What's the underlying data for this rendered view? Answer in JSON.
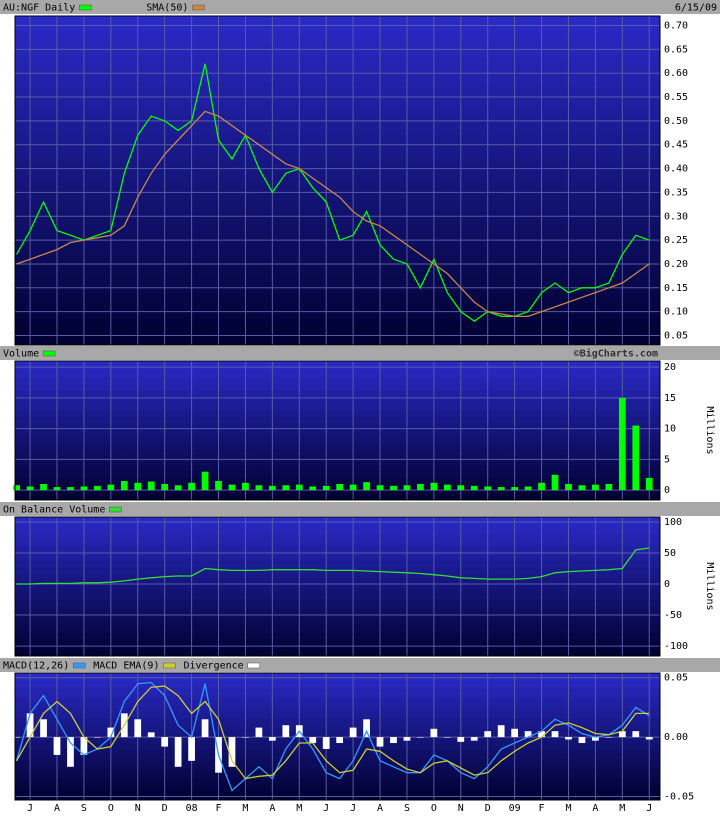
{
  "chart_data": [
    {
      "type": "line",
      "date": "6/15/09",
      "x": [
        -0.5,
        0,
        0.5,
        1,
        1.5,
        2,
        2.5,
        3,
        3.5,
        4,
        4.5,
        5,
        5.5,
        6,
        6.5,
        7,
        7.5,
        8,
        8.5,
        9,
        9.5,
        10,
        10.5,
        11,
        11.5,
        12,
        12.5,
        13,
        13.5,
        14,
        14.5,
        15,
        15.5,
        16,
        16.5,
        17,
        17.5,
        18,
        18.5,
        19,
        19.5,
        20,
        20.5,
        21,
        21.5,
        22,
        22.5,
        23
      ],
      "xlim": [
        -0.56,
        23.4
      ],
      "ylim": [
        0.03,
        0.72
      ],
      "yticks": [
        0.05,
        {
          "value": 0.1,
          "label": "0.10"
        },
        0.15,
        {
          "value": 0.2,
          "label": "0.20"
        },
        0.25,
        {
          "value": 0.3,
          "label": "0.30"
        },
        0.35,
        {
          "value": 0.4,
          "label": "0.40"
        },
        0.45,
        {
          "value": 0.5,
          "label": "0.50"
        },
        0.55,
        {
          "value": 0.6,
          "label": "0.60"
        },
        0.65,
        {
          "value": 0.7,
          "label": "0.70"
        }
      ],
      "grid": true,
      "series": [
        {
          "name": "AU:NGF Daily",
          "color": "#00ff00",
          "values": [
            0.22,
            0.27,
            0.33,
            0.27,
            0.26,
            0.25,
            0.26,
            0.27,
            0.39,
            0.47,
            0.51,
            0.5,
            0.48,
            0.5,
            0.62,
            0.46,
            0.42,
            0.47,
            0.4,
            0.35,
            0.39,
            0.4,
            0.36,
            0.33,
            0.25,
            0.26,
            0.31,
            0.24,
            0.21,
            0.2,
            0.15,
            0.21,
            0.14,
            0.1,
            0.08,
            0.1,
            0.09,
            0.09,
            0.1,
            0.14,
            0.16,
            0.14,
            0.15,
            0.15,
            0.16,
            0.22,
            0.26,
            0.25
          ]
        },
        {
          "name": "SMA(50)",
          "color": "#c8864a",
          "values": [
            0.2,
            0.21,
            0.22,
            0.23,
            0.245,
            0.25,
            0.255,
            0.26,
            0.28,
            0.34,
            0.39,
            0.43,
            0.46,
            0.49,
            0.52,
            0.51,
            0.49,
            0.47,
            0.45,
            0.43,
            0.41,
            0.4,
            0.38,
            0.36,
            0.34,
            0.31,
            0.29,
            0.28,
            0.26,
            0.24,
            0.22,
            0.2,
            0.18,
            0.15,
            0.12,
            0.1,
            0.095,
            0.09,
            0.09,
            0.1,
            0.11,
            0.12,
            0.13,
            0.14,
            0.15,
            0.16,
            0.18,
            0.2
          ]
        }
      ]
    },
    {
      "type": "bar",
      "credit": "©BigCharts.com",
      "y_label": "Millions",
      "x": [
        -0.5,
        0,
        0.5,
        1,
        1.5,
        2,
        2.5,
        3,
        3.5,
        4,
        4.5,
        5,
        5.5,
        6,
        6.5,
        7,
        7.5,
        8,
        8.5,
        9,
        9.5,
        10,
        10.5,
        11,
        11.5,
        12,
        12.5,
        13,
        13.5,
        14,
        14.5,
        15,
        15.5,
        16,
        16.5,
        17,
        17.5,
        18,
        18.5,
        19,
        19.5,
        20,
        20.5,
        21,
        21.5,
        22,
        22.5,
        23
      ],
      "xlim": [
        -0.56,
        23.4
      ],
      "ylim": [
        -1.6,
        21
      ],
      "yticks": [
        0,
        5,
        10,
        15,
        20
      ],
      "grid": true,
      "series": [
        {
          "name": "Volume",
          "color": "#00ff00",
          "values": [
            0.8,
            0.6,
            1.0,
            0.5,
            0.5,
            0.6,
            0.7,
            0.9,
            1.5,
            1.2,
            1.4,
            1.0,
            0.8,
            1.2,
            3.0,
            1.5,
            0.9,
            1.2,
            0.8,
            0.7,
            0.8,
            0.9,
            0.6,
            0.7,
            1.0,
            0.9,
            1.3,
            0.8,
            0.7,
            0.8,
            1.0,
            1.2,
            0.9,
            0.8,
            0.7,
            0.6,
            0.5,
            0.5,
            0.6,
            1.2,
            2.5,
            1.0,
            0.8,
            0.9,
            1.0,
            15.0,
            10.5,
            2.0
          ]
        }
      ]
    },
    {
      "type": "line",
      "y_label": "Millions",
      "x": [
        -0.5,
        0,
        0.5,
        1,
        1.5,
        2,
        2.5,
        3,
        3.5,
        4,
        4.5,
        5,
        5.5,
        6,
        6.5,
        7,
        7.5,
        8,
        8.5,
        9,
        9.5,
        10,
        10.5,
        11,
        11.5,
        12,
        12.5,
        13,
        13.5,
        14,
        14.5,
        15,
        15.5,
        16,
        16.5,
        17,
        17.5,
        18,
        18.5,
        19,
        19.5,
        20,
        20.5,
        21,
        21.5,
        22,
        22.5,
        23
      ],
      "xlim": [
        -0.56,
        23.4
      ],
      "ylim": [
        -116,
        108
      ],
      "yticks": [
        -100,
        -50,
        0,
        50,
        100
      ],
      "grid": true,
      "series": [
        {
          "name": "On Balance Volume",
          "color": "#33dd33",
          "values": [
            0,
            0,
            1,
            1,
            1,
            2,
            2,
            3,
            5,
            8,
            10,
            12,
            13,
            13,
            25,
            23,
            22,
            22,
            22,
            23,
            23,
            23,
            23,
            22,
            22,
            22,
            21,
            20,
            19,
            18,
            17,
            15,
            13,
            10,
            9,
            8,
            8,
            8,
            9,
            12,
            18,
            20,
            21,
            22,
            23,
            25,
            55,
            58
          ]
        }
      ]
    },
    {
      "type": "line",
      "x": [
        -0.5,
        0,
        0.5,
        1,
        1.5,
        2,
        2.5,
        3,
        3.5,
        4,
        4.5,
        5,
        5.5,
        6,
        6.5,
        7,
        7.5,
        8,
        8.5,
        9,
        9.5,
        10,
        10.5,
        11,
        11.5,
        12,
        12.5,
        13,
        13.5,
        14,
        14.5,
        15,
        15.5,
        16,
        16.5,
        17,
        17.5,
        18,
        18.5,
        19,
        19.5,
        20,
        20.5,
        21,
        21.5,
        22,
        22.5,
        23
      ],
      "xlim": [
        -0.56,
        23.4
      ],
      "ylim": [
        -0.053,
        0.054
      ],
      "yticks": [
        -0.05,
        {
          "value": 0,
          "label": "0.00"
        },
        0.05
      ],
      "grid": true,
      "xticks": [
        {
          "value": 0,
          "label": "J"
        },
        {
          "value": 1,
          "label": "A"
        },
        {
          "value": 2,
          "label": "S"
        },
        {
          "value": 3,
          "label": "O"
        },
        {
          "value": 4,
          "label": "N"
        },
        {
          "value": 5,
          "label": "D"
        },
        {
          "value": 6,
          "label": "08"
        },
        {
          "value": 7,
          "label": "F"
        },
        {
          "value": 8,
          "label": "M"
        },
        {
          "value": 9,
          "label": "A"
        },
        {
          "value": 10,
          "label": "M"
        },
        {
          "value": 11,
          "label": "J"
        },
        {
          "value": 12,
          "label": "J"
        },
        {
          "value": 13,
          "label": "A"
        },
        {
          "value": 14,
          "label": "S"
        },
        {
          "value": 15,
          "label": "O"
        },
        {
          "value": 16,
          "label": "N"
        },
        {
          "value": 17,
          "label": "D"
        },
        {
          "value": 18,
          "label": "09"
        },
        {
          "value": 19,
          "label": "F"
        },
        {
          "value": 20,
          "label": "M"
        },
        {
          "value": 21,
          "label": "A"
        },
        {
          "value": 22,
          "label": "M"
        },
        {
          "value": 23,
          "label": "J"
        }
      ],
      "series": [
        {
          "name": "MACD(12,26)",
          "color": "#3399ff",
          "values": [
            -0.02,
            0.02,
            0.035,
            0.015,
            -0.005,
            -0.015,
            -0.01,
            0.0,
            0.03,
            0.045,
            0.046,
            0.035,
            0.01,
            0.0,
            0.045,
            -0.015,
            -0.045,
            -0.035,
            -0.025,
            -0.035,
            -0.01,
            0.005,
            -0.01,
            -0.03,
            -0.035,
            -0.02,
            0.005,
            -0.02,
            -0.025,
            -0.03,
            -0.03,
            -0.015,
            -0.02,
            -0.03,
            -0.035,
            -0.025,
            -0.01,
            -0.005,
            0.0,
            0.005,
            0.015,
            0.01,
            0.003,
            0.0,
            0.002,
            0.01,
            0.025,
            0.018
          ]
        },
        {
          "name": "MACD EMA(9)",
          "color": "#cccc33",
          "values": [
            -0.02,
            0.0,
            0.02,
            0.03,
            0.02,
            0.0,
            -0.01,
            -0.008,
            0.01,
            0.03,
            0.042,
            0.043,
            0.035,
            0.02,
            0.03,
            0.015,
            -0.02,
            -0.035,
            -0.033,
            -0.032,
            -0.02,
            -0.005,
            -0.005,
            -0.02,
            -0.03,
            -0.028,
            -0.01,
            -0.012,
            -0.02,
            -0.027,
            -0.03,
            -0.022,
            -0.02,
            -0.026,
            -0.032,
            -0.03,
            -0.02,
            -0.012,
            -0.005,
            0.0,
            0.01,
            0.012,
            0.008,
            0.003,
            0.002,
            0.005,
            0.02,
            0.02
          ]
        },
        {
          "name": "Divergence",
          "color": "#ffffff",
          "type": "bar",
          "values": [
            0,
            0.02,
            0.015,
            -0.015,
            -0.025,
            -0.015,
            0,
            0.008,
            0.02,
            0.015,
            0.004,
            -0.008,
            -0.025,
            -0.02,
            0.015,
            -0.03,
            -0.025,
            0,
            0.008,
            -0.003,
            0.01,
            0.01,
            -0.005,
            -0.01,
            -0.005,
            0.008,
            0.015,
            -0.008,
            -0.005,
            -0.003,
            0,
            0.007,
            0,
            -0.004,
            -0.003,
            0.005,
            0.01,
            0.007,
            0.005,
            0.005,
            0.005,
            -0.002,
            -0.005,
            -0.003,
            0,
            0.005,
            0.005,
            -0.002
          ]
        }
      ]
    }
  ]
}
